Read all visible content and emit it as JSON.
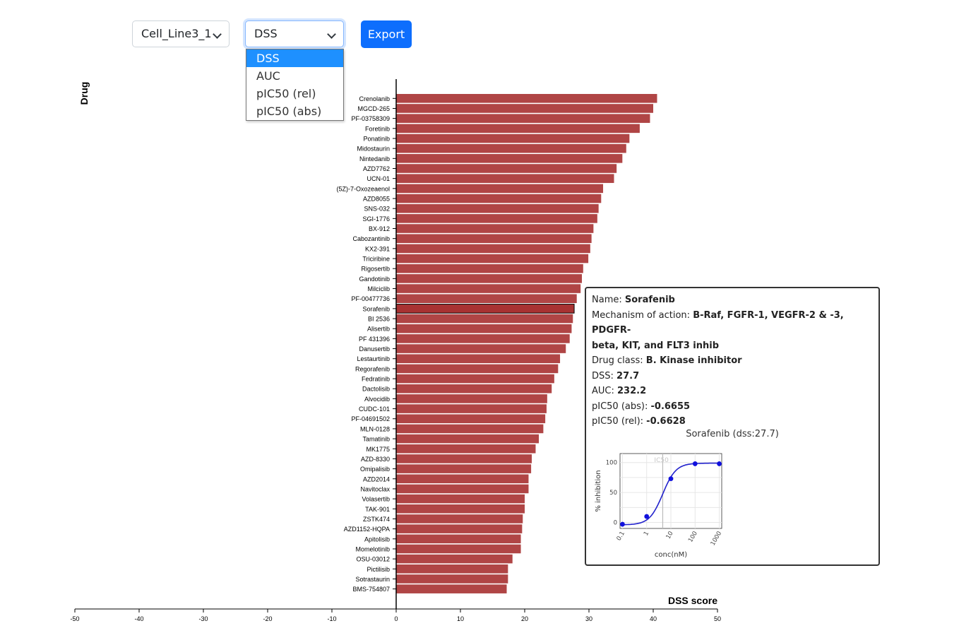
{
  "controls": {
    "cell_line_value": "Cell_Line3_1",
    "metric_value": "DSS",
    "metric_options": [
      "DSS",
      "AUC",
      "pIC50 (rel)",
      "pIC50 (abs)"
    ],
    "export_label": "Export"
  },
  "chart_data": {
    "type": "bar",
    "orientation": "horizontal",
    "title": "",
    "ylabel": "Drug",
    "xlabel": "DSS score",
    "xlim": [
      -50,
      50
    ],
    "xticks": [
      -50,
      -40,
      -30,
      -20,
      -10,
      0,
      10,
      20,
      30,
      40,
      50
    ],
    "highlighted": "Sorafenib",
    "bar_color": "#b04545",
    "highlight_color": "#a83232",
    "categories": [
      "Crenolanib",
      "MGCD-265",
      "PF-03758309",
      "Foretinib",
      "Ponatinib",
      "Midostaurin",
      "Nintedanib",
      "AZD7762",
      "UCN-01",
      "(5Z)-7-Oxozeaenol",
      "AZD8055",
      "SNS-032",
      "SGI-1776",
      "BX-912",
      "Cabozantinib",
      "KX2-391",
      "Triciribine",
      "Rigosertib",
      "Gandotinib",
      "Milciclib",
      "PF-00477736",
      "Sorafenib",
      "BI 2536",
      "Alisertib",
      "PF 431396",
      "Danusertib",
      "Lestaurtinib",
      "Regorafenib",
      "Fedratinib",
      "Dactolisib",
      "Alvocidib",
      "CUDC-101",
      "PF-04691502",
      "MLN-0128",
      "Tamatinib",
      "MK1775",
      "AZD-8330",
      "Omipalisib",
      "AZD2014",
      "Navitoclax",
      "Volasertib",
      "TAK-901",
      "ZSTK474",
      "AZD1152-HQPA",
      "Apitolisib",
      "Momelotinib",
      "OSU-03012",
      "Pictilisib",
      "Sotrastaurin",
      "BMS-754807"
    ],
    "values": [
      40.6,
      40.0,
      39.5,
      37.9,
      36.3,
      35.8,
      35.2,
      34.3,
      33.9,
      32.2,
      31.9,
      31.5,
      31.3,
      30.7,
      30.4,
      30.2,
      29.9,
      29.1,
      28.9,
      28.7,
      28.1,
      27.7,
      27.5,
      27.3,
      27.0,
      26.4,
      25.5,
      25.2,
      24.6,
      24.2,
      23.5,
      23.4,
      23.2,
      22.9,
      22.2,
      21.7,
      21.1,
      21.0,
      20.6,
      20.6,
      20.0,
      20.0,
      19.7,
      19.6,
      19.4,
      19.4,
      18.1,
      17.4,
      17.4,
      17.2
    ]
  },
  "tooltip": {
    "name_label": "Name:",
    "name": "Sorafenib",
    "moa_label": "Mechanism of action:",
    "moa_line1": "B-Raf, FGFR-1, VEGFR-2 & -3, PDGFR-",
    "moa_line2": "beta, KIT, and FLT3 inhib",
    "class_label": "Drug class:",
    "class": "B. Kinase inhibitor",
    "dss_label": "DSS:",
    "dss": "27.7",
    "auc_label": "AUC:",
    "auc": "232.2",
    "pabs_label": "pIC50 (abs):",
    "pabs": "-0.6655",
    "prel_label": "pIC50 (rel):",
    "prel": "-0.6628",
    "plot_title": "Sorafenib (dss:27.7)",
    "curve": {
      "xlabel": "conc(nM)",
      "ylabel": "% inhibition",
      "ic50_label": "IC50",
      "x_ticks": [
        "0.1",
        "1",
        "10",
        "100",
        "1000"
      ],
      "y_ticks": [
        "0",
        "50",
        "100"
      ],
      "ylim": [
        -10,
        115
      ],
      "ic50_nM": 4.6,
      "points": [
        {
          "conc": 0.1,
          "inh": -3
        },
        {
          "conc": 1,
          "inh": 10
        },
        {
          "conc": 10,
          "inh": 73
        },
        {
          "conc": 100,
          "inh": 98
        },
        {
          "conc": 1000,
          "inh": 98
        }
      ]
    }
  }
}
